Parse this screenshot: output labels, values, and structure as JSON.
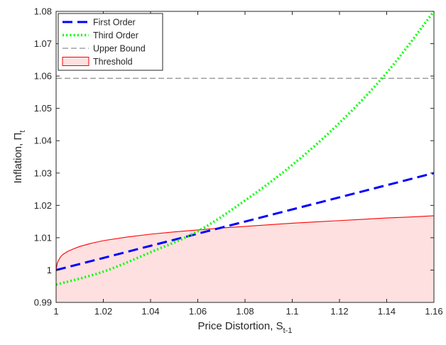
{
  "chart_data": {
    "type": "line",
    "xlabel": "Price Distortion, S",
    "xlabel_sub": "t-1",
    "ylabel": "Inflation, Π",
    "ylabel_sub": "t",
    "xlim": [
      1,
      1.16
    ],
    "ylim": [
      0.99,
      1.08
    ],
    "x_ticks": [
      "1",
      "1.02",
      "1.04",
      "1.06",
      "1.08",
      "1.1",
      "1.12",
      "1.14",
      "1.16"
    ],
    "y_ticks": [
      "0.99",
      "1",
      "1.01",
      "1.02",
      "1.03",
      "1.04",
      "1.05",
      "1.06",
      "1.07",
      "1.08"
    ],
    "legend_position": "top-left",
    "series": [
      {
        "name": "First Order",
        "style": "dashed-thick",
        "color": "#0000ff",
        "x": [
          1.0,
          1.16
        ],
        "y": [
          1.0,
          1.03
        ]
      },
      {
        "name": "Third Order",
        "style": "dotted-thick",
        "color": "#00ff00",
        "x": [
          1.0,
          1.02,
          1.04,
          1.06,
          1.08,
          1.1,
          1.12,
          1.14,
          1.16
        ],
        "y": [
          0.9955,
          0.9995,
          1.0055,
          1.012,
          1.0215,
          1.0325,
          1.0455,
          1.061,
          1.08
        ]
      },
      {
        "name": "Upper Bound",
        "style": "dashed-thin",
        "color": "#737373",
        "x": [
          1.0,
          1.16
        ],
        "y": [
          1.0593,
          1.0593
        ]
      },
      {
        "name": "Threshold",
        "style": "filled-area",
        "color": "#ff0000",
        "fill": "#ffe0e0",
        "x": [
          1.0,
          1.0005,
          1.001,
          1.002,
          1.003,
          1.005,
          1.0075,
          1.01,
          1.015,
          1.02,
          1.03,
          1.04,
          1.05,
          1.06,
          1.07,
          1.08,
          1.09,
          1.1,
          1.11,
          1.12,
          1.13,
          1.14,
          1.15,
          1.16
        ],
        "y": [
          1.0,
          1.0022,
          1.003,
          1.0042,
          1.0049,
          1.0058,
          1.0066,
          1.0073,
          1.0083,
          1.0091,
          1.0102,
          1.0111,
          1.0118,
          1.0124,
          1.013,
          1.0135,
          1.014,
          1.0145,
          1.0149,
          1.0153,
          1.0157,
          1.0161,
          1.0164,
          1.0168
        ]
      }
    ]
  }
}
